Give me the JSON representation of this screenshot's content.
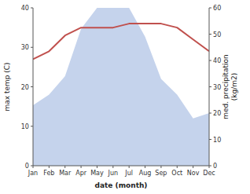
{
  "chart_data": {
    "type": "line",
    "categories": [
      "Jan",
      "Feb",
      "Mar",
      "Apr",
      "May",
      "Jun",
      "Jul",
      "Aug",
      "Sep",
      "Oct",
      "Nov",
      "Dec"
    ],
    "series": [
      {
        "type": "area",
        "axis": "y2",
        "color": "#c5d3ec",
        "values": [
          23,
          27,
          34,
          52,
          60,
          60,
          60,
          49,
          33,
          27,
          18,
          20
        ]
      },
      {
        "type": "line",
        "color": "#c0504d",
        "values": [
          27,
          29,
          33,
          35,
          35,
          35,
          36,
          36,
          36,
          35,
          32,
          29
        ]
      }
    ],
    "xlabel": "date (month)",
    "ylabel": "max temp (C)",
    "y2label": "med. precipitation\n(kg/m2)",
    "ylim": [
      0,
      40
    ],
    "yticks": [
      0,
      10,
      20,
      30,
      40
    ],
    "y2lim": [
      0,
      60
    ],
    "y2ticks": [
      0,
      10,
      20,
      30,
      40,
      50,
      60
    ],
    "grid": false
  }
}
